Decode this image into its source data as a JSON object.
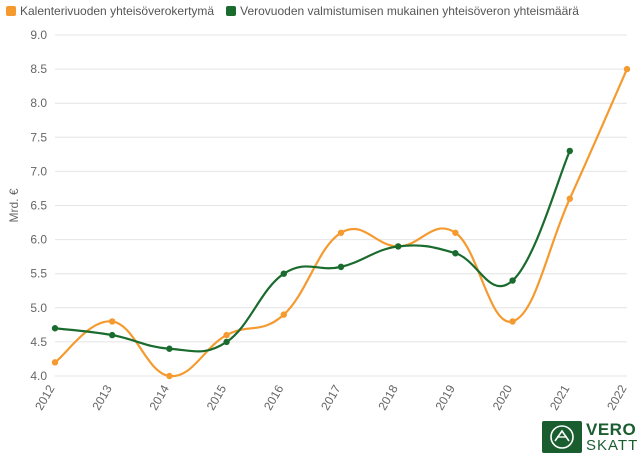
{
  "legend": [
    {
      "label": "Kalenterivuoden yhteisöverokertymä",
      "color": "#f59a2f"
    },
    {
      "label": "Verovuoden valmistumisen mukainen yhteisöveron yhteismäärä",
      "color": "#1a6b2e"
    }
  ],
  "logo": {
    "line1": "VERO",
    "line2": "SKATT",
    "badge_color": "#1a5e30"
  },
  "chart_data": {
    "type": "line",
    "ylabel": "Mrd. €",
    "xlabel": "",
    "ylim": [
      4.0,
      9.0
    ],
    "y_ticks": [
      "4.0",
      "4.5",
      "5.0",
      "5.5",
      "6.0",
      "6.5",
      "7.0",
      "7.5",
      "8.0",
      "8.5",
      "9.0"
    ],
    "categories": [
      "2012",
      "2013",
      "2014",
      "2015",
      "2016",
      "2017",
      "2018",
      "2019",
      "2020",
      "2021",
      "2022"
    ],
    "grid": true,
    "legend_position": "top-left",
    "series": [
      {
        "name": "Kalenterivuoden yhteisöverokertymä",
        "color": "#f59a2f",
        "values": [
          4.2,
          4.8,
          4.0,
          4.6,
          4.9,
          6.1,
          5.9,
          6.1,
          4.8,
          6.6,
          8.5
        ]
      },
      {
        "name": "Verovuoden valmistumisen mukainen yhteisöveron yhteismäärä",
        "color": "#1a6b2e",
        "values": [
          4.7,
          4.6,
          4.4,
          4.5,
          5.5,
          5.6,
          5.9,
          5.8,
          5.4,
          7.3,
          null
        ]
      }
    ]
  }
}
